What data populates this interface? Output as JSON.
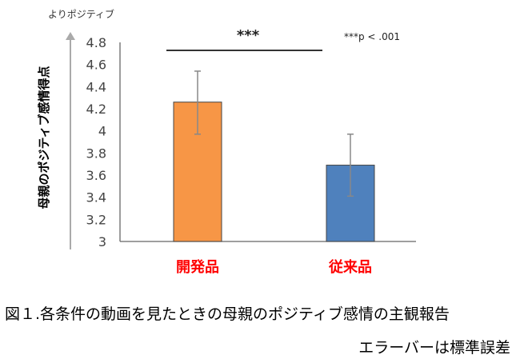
{
  "chart_data": {
    "type": "bar",
    "categories": [
      "開発品",
      "従来品"
    ],
    "values": [
      4.26,
      3.69
    ],
    "error_bars": [
      [
        3.97,
        4.54
      ],
      [
        3.41,
        3.97
      ]
    ],
    "colors": [
      "#F79646",
      "#4F81BD"
    ],
    "category_label_color": "#FF0000",
    "ylabel": "母親のポジティブ感情得点",
    "ylim": [
      3,
      4.8
    ],
    "yticks": [
      "3",
      "3.2",
      "3.4",
      "3.6",
      "3.8",
      "4",
      "4.2",
      "4.4",
      "4.6",
      "4.8"
    ],
    "arrow_label": "よりポジティブ",
    "significance": {
      "marker": "***",
      "note": "***p < .001"
    },
    "grid": false
  },
  "caption": {
    "line1": "図１.各条件の動画を見たときの母親のポジティブ感情の主観報告",
    "line2": "エラーバーは標準誤差"
  }
}
